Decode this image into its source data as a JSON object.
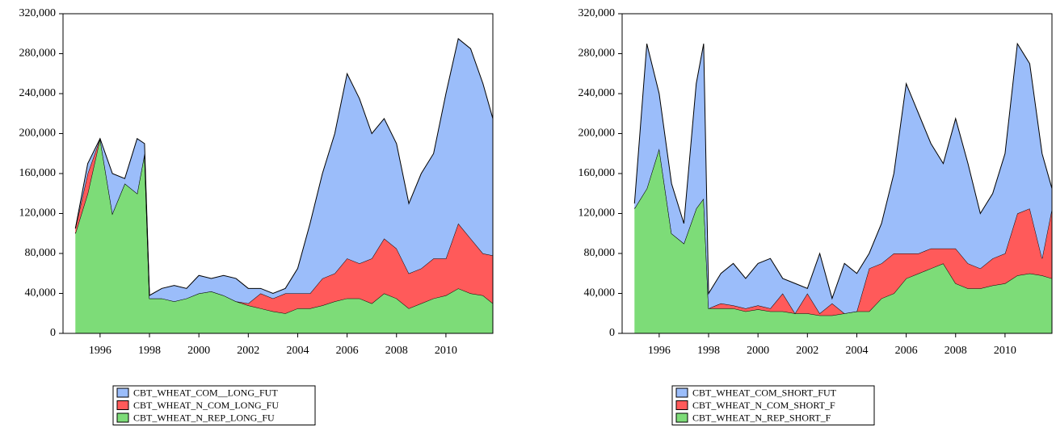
{
  "chart_data": [
    {
      "type": "area",
      "stacked": true,
      "legend": "bottom",
      "x": [
        1995.0,
        1995.5,
        1996.0,
        1996.5,
        1997.0,
        1997.5,
        1997.8,
        1998.0,
        1998.5,
        1999.0,
        1999.5,
        2000.0,
        2000.5,
        2001.0,
        2001.5,
        2002.0,
        2002.5,
        2003.0,
        2003.5,
        2004.0,
        2004.5,
        2005.0,
        2005.5,
        2006.0,
        2006.5,
        2007.0,
        2007.5,
        2008.0,
        2008.5,
        2009.0,
        2009.5,
        2010.0,
        2010.5,
        2011.0,
        2011.5,
        2011.9
      ],
      "xlim": [
        1994.5,
        2011.9
      ],
      "xticks": [
        1996,
        1998,
        2000,
        2002,
        2004,
        2006,
        2008,
        2010
      ],
      "ylim": [
        0,
        320000
      ],
      "yticks": [
        0,
        {
          "value": 40000,
          "label": "40,000"
        },
        {
          "value": 80000,
          "label": "80,000"
        },
        {
          "value": 120000,
          "label": "120,000"
        },
        {
          "value": 160000,
          "label": "160,000"
        },
        {
          "value": 200000,
          "label": "200,000"
        },
        {
          "value": 240000,
          "label": "240,000"
        },
        {
          "value": 280000,
          "label": "280,000"
        },
        {
          "value": 320000,
          "label": "320,000"
        }
      ],
      "series": [
        {
          "name": "CBT_WHEAT_N_REP_LONG_FU",
          "color": "#7ddc78",
          "values": [
            100000,
            140000,
            195000,
            120000,
            150000,
            140000,
            180000,
            35000,
            35000,
            32000,
            35000,
            40000,
            42000,
            38000,
            32000,
            28000,
            25000,
            22000,
            20000,
            25000,
            25000,
            28000,
            32000,
            35000,
            35000,
            30000,
            40000,
            35000,
            25000,
            30000,
            35000,
            38000,
            45000,
            40000,
            38000,
            30000
          ]
        },
        {
          "name": "CBT_WHEAT_N_COM_LONG_FU",
          "color": "#ff5a5a",
          "values": [
            5000,
            20000,
            0,
            0,
            0,
            0,
            0,
            0,
            0,
            0,
            0,
            0,
            0,
            0,
            0,
            2000,
            15000,
            13000,
            20000,
            15000,
            15000,
            27000,
            28000,
            40000,
            35000,
            45000,
            55000,
            50000,
            35000,
            35000,
            40000,
            37000,
            65000,
            55000,
            42000,
            48000
          ]
        },
        {
          "name": "CBT_WHEAT_COM__LONG_FUT",
          "color": "#9bbdfa",
          "values": [
            0,
            10000,
            0,
            40000,
            5000,
            55000,
            10000,
            3000,
            10000,
            16000,
            10000,
            18000,
            13000,
            20000,
            23000,
            15000,
            5000,
            5000,
            5000,
            25000,
            70000,
            105000,
            140000,
            185000,
            165000,
            125000,
            120000,
            105000,
            70000,
            95000,
            105000,
            165000,
            185000,
            190000,
            170000,
            137000
          ]
        }
      ]
    },
    {
      "type": "area",
      "stacked": true,
      "legend": "bottom",
      "x": [
        1995.0,
        1995.5,
        1996.0,
        1996.5,
        1997.0,
        1997.5,
        1997.8,
        1998.0,
        1998.5,
        1999.0,
        1999.5,
        2000.0,
        2000.5,
        2001.0,
        2001.5,
        2002.0,
        2002.5,
        2003.0,
        2003.5,
        2004.0,
        2004.5,
        2005.0,
        2005.5,
        2006.0,
        2006.5,
        2007.0,
        2007.5,
        2008.0,
        2008.5,
        2009.0,
        2009.5,
        2010.0,
        2010.5,
        2011.0,
        2011.5,
        2011.9
      ],
      "xlim": [
        1994.5,
        2011.9
      ],
      "xticks": [
        1996,
        1998,
        2000,
        2002,
        2004,
        2006,
        2008,
        2010
      ],
      "ylim": [
        0,
        320000
      ],
      "yticks": [
        0,
        {
          "value": 40000,
          "label": "40,000"
        },
        {
          "value": 80000,
          "label": "80,000"
        },
        {
          "value": 120000,
          "label": "120,000"
        },
        {
          "value": 160000,
          "label": "160,000"
        },
        {
          "value": 200000,
          "label": "200,000"
        },
        {
          "value": 240000,
          "label": "240,000"
        },
        {
          "value": 280000,
          "label": "280,000"
        },
        {
          "value": 320000,
          "label": "320,000"
        }
      ],
      "series": [
        {
          "name": "CBT_WHEAT_N_REP_SHORT_F",
          "color": "#7ddc78",
          "values": [
            125000,
            145000,
            185000,
            100000,
            90000,
            125000,
            135000,
            25000,
            25000,
            25000,
            22000,
            24000,
            22000,
            22000,
            20000,
            20000,
            18000,
            18000,
            20000,
            22000,
            22000,
            35000,
            40000,
            55000,
            60000,
            65000,
            70000,
            50000,
            45000,
            45000,
            48000,
            50000,
            58000,
            60000,
            58000,
            55000
          ]
        },
        {
          "name": "CBT_WHEAT_N_COM_SHORT_F",
          "color": "#ff5a5a",
          "values": [
            0,
            0,
            0,
            0,
            0,
            0,
            0,
            0,
            5000,
            3000,
            3000,
            4000,
            3000,
            18000,
            0,
            20000,
            2000,
            12000,
            0,
            0,
            43000,
            35000,
            40000,
            25000,
            20000,
            20000,
            15000,
            35000,
            25000,
            20000,
            27000,
            30000,
            62000,
            65000,
            17000,
            70000
          ]
        },
        {
          "name": "CBT_WHEAT_COM_SHORT_FUT",
          "color": "#9bbdfa",
          "values": [
            5000,
            145000,
            55000,
            50000,
            20000,
            125000,
            155000,
            15000,
            30000,
            42000,
            30000,
            42000,
            50000,
            15000,
            30000,
            5000,
            60000,
            5000,
            50000,
            38000,
            15000,
            40000,
            80000,
            170000,
            140000,
            105000,
            85000,
            130000,
            100000,
            55000,
            65000,
            100000,
            170000,
            145000,
            105000,
            20000
          ]
        }
      ]
    }
  ]
}
